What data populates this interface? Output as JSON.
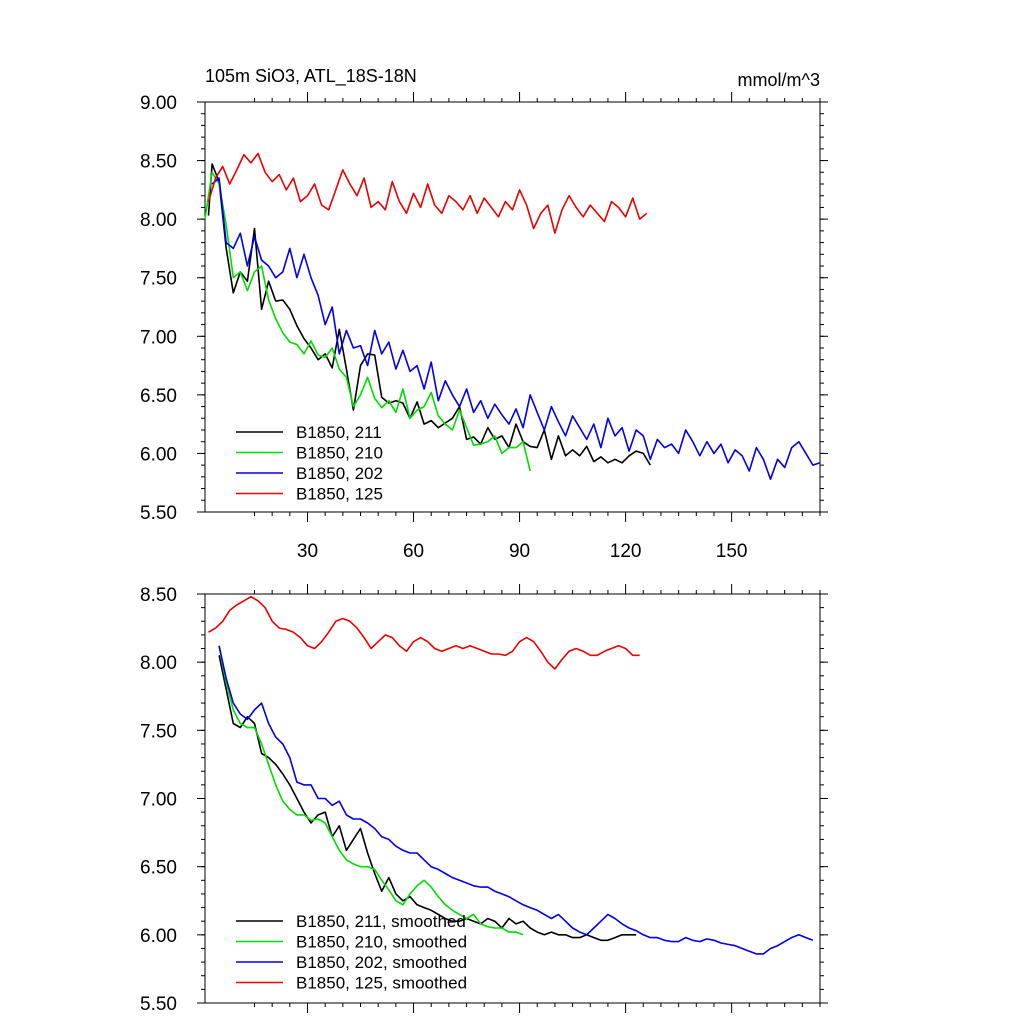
{
  "chart_data": [
    {
      "type": "line",
      "title_left": "105m SiO3, ATL_18S-18N",
      "title_right": "mmol/m^3",
      "xlim": [
        1,
        175
      ],
      "ylim": [
        5.5,
        9.0
      ],
      "xticks": [
        30,
        60,
        90,
        120,
        150
      ],
      "xtick_labels": [
        "30",
        "60",
        "90",
        "120",
        "150"
      ],
      "yticks": [
        5.5,
        6.0,
        6.5,
        7.0,
        7.5,
        8.0,
        8.5,
        9.0
      ],
      "ytick_labels": [
        "5.50",
        "6.00",
        "6.50",
        "7.00",
        "7.50",
        "8.00",
        "8.50",
        "9.00"
      ],
      "legend_position": "bottom-left",
      "series": [
        {
          "name": "B1850, 211",
          "color": "#000000",
          "x": [
            2,
            3,
            5,
            7,
            9,
            11,
            13,
            15,
            17,
            19,
            21,
            23,
            25,
            27,
            29,
            31,
            33,
            35,
            37,
            39,
            41,
            43,
            45,
            47,
            49,
            51,
            53,
            55,
            57,
            59,
            61,
            63,
            65,
            67,
            69,
            71,
            73,
            75,
            77,
            79,
            81,
            83,
            85,
            87,
            89,
            91,
            93,
            95,
            97,
            99,
            101,
            103,
            105,
            107,
            109,
            111,
            113,
            115,
            117,
            119,
            121,
            123,
            125,
            127
          ],
          "y": [
            8.03,
            8.47,
            8.32,
            7.75,
            7.37,
            7.55,
            7.47,
            7.92,
            7.23,
            7.47,
            7.3,
            7.31,
            7.23,
            7.09,
            6.98,
            6.9,
            6.8,
            6.85,
            6.73,
            7.06,
            6.72,
            6.37,
            6.75,
            6.85,
            6.84,
            6.48,
            6.43,
            6.45,
            6.43,
            6.3,
            6.44,
            6.25,
            6.28,
            6.22,
            6.26,
            6.3,
            6.4,
            6.12,
            6.14,
            6.08,
            6.22,
            6.12,
            6.15,
            6.05,
            6.25,
            6.1,
            6.06,
            6.05,
            6.2,
            5.95,
            6.15,
            5.98,
            6.03,
            5.98,
            6.06,
            5.93,
            5.97,
            5.92,
            5.95,
            5.92,
            5.98,
            6.02,
            6.0,
            5.9
          ]
        },
        {
          "name": "B1850, 210",
          "color": "#00dd00",
          "x": [
            1,
            3,
            5,
            7,
            9,
            11,
            13,
            15,
            17,
            19,
            21,
            23,
            25,
            27,
            29,
            31,
            33,
            35,
            37,
            39,
            41,
            43,
            45,
            47,
            49,
            51,
            53,
            55,
            57,
            59,
            61,
            63,
            65,
            67,
            69,
            71,
            73,
            75,
            77,
            79,
            81,
            83,
            85,
            87,
            89,
            91,
            93
          ],
          "y": [
            8.0,
            8.4,
            8.3,
            7.95,
            7.5,
            7.55,
            7.39,
            7.55,
            7.6,
            7.31,
            7.15,
            7.03,
            6.95,
            6.93,
            6.85,
            6.96,
            6.84,
            6.82,
            6.9,
            6.72,
            6.65,
            6.4,
            6.5,
            6.65,
            6.47,
            6.39,
            6.45,
            6.35,
            6.55,
            6.3,
            6.37,
            6.4,
            6.52,
            6.32,
            6.25,
            6.2,
            6.37,
            6.22,
            6.07,
            6.08,
            6.1,
            6.15,
            6.0,
            6.05,
            6.05,
            6.1,
            5.85
          ]
        },
        {
          "name": "B1850, 202",
          "color": "#0000ee",
          "x": [
            3,
            5,
            7,
            9,
            11,
            13,
            15,
            17,
            19,
            21,
            23,
            25,
            27,
            29,
            31,
            33,
            35,
            37,
            39,
            41,
            43,
            45,
            47,
            49,
            51,
            53,
            55,
            57,
            59,
            61,
            63,
            65,
            67,
            69,
            71,
            73,
            75,
            77,
            79,
            81,
            83,
            85,
            87,
            89,
            91,
            93,
            95,
            97,
            99,
            101,
            103,
            105,
            107,
            109,
            111,
            113,
            115,
            117,
            119,
            121,
            123,
            125,
            127,
            129,
            131,
            133,
            135,
            137,
            139,
            141,
            143,
            145,
            147,
            149,
            151,
            153,
            155,
            157,
            159,
            161,
            163,
            165,
            167,
            169,
            171,
            173,
            175
          ],
          "y": [
            8.3,
            8.35,
            7.8,
            7.75,
            7.88,
            7.6,
            7.85,
            7.65,
            7.6,
            7.5,
            7.55,
            7.75,
            7.5,
            7.7,
            7.5,
            7.35,
            7.1,
            7.25,
            6.85,
            7.05,
            6.9,
            6.92,
            6.75,
            7.05,
            6.85,
            6.95,
            6.72,
            6.88,
            6.7,
            6.75,
            6.55,
            6.78,
            6.45,
            6.62,
            6.5,
            6.4,
            6.55,
            6.35,
            6.45,
            6.3,
            6.42,
            6.33,
            6.25,
            6.38,
            6.22,
            6.5,
            6.35,
            6.2,
            6.4,
            6.27,
            6.15,
            6.32,
            6.22,
            6.12,
            6.25,
            6.05,
            6.3,
            6.15,
            6.22,
            6.02,
            6.2,
            6.15,
            5.95,
            6.12,
            6.05,
            6.08,
            6.0,
            6.2,
            6.1,
            5.98,
            6.1,
            6.0,
            6.08,
            5.92,
            6.03,
            5.98,
            5.85,
            6.05,
            5.95,
            5.78,
            5.95,
            5.88,
            6.05,
            6.1,
            6.0,
            5.9,
            5.92
          ]
        },
        {
          "name": "B1850, 125",
          "color": "#ee0000",
          "x": [
            2,
            4,
            6,
            8,
            10,
            12,
            14,
            16,
            18,
            20,
            22,
            24,
            26,
            28,
            30,
            32,
            34,
            36,
            38,
            40,
            42,
            44,
            46,
            48,
            50,
            52,
            54,
            56,
            58,
            60,
            62,
            64,
            66,
            68,
            70,
            72,
            74,
            76,
            78,
            80,
            82,
            84,
            86,
            88,
            90,
            92,
            94,
            96,
            98,
            100,
            102,
            104,
            106,
            108,
            110,
            112,
            114,
            116,
            118,
            120,
            122,
            124,
            126
          ],
          "y": [
            8.15,
            8.35,
            8.45,
            8.3,
            8.42,
            8.55,
            8.48,
            8.56,
            8.4,
            8.32,
            8.38,
            8.25,
            8.35,
            8.15,
            8.2,
            8.3,
            8.12,
            8.08,
            8.25,
            8.42,
            8.3,
            8.2,
            8.35,
            8.1,
            8.15,
            8.08,
            8.32,
            8.15,
            8.05,
            8.22,
            8.1,
            8.3,
            8.12,
            8.05,
            8.2,
            8.15,
            8.08,
            8.2,
            8.05,
            8.18,
            8.1,
            8.02,
            8.15,
            8.08,
            8.25,
            8.12,
            7.92,
            8.05,
            8.12,
            7.88,
            8.08,
            8.2,
            8.1,
            8.02,
            8.12,
            8.05,
            7.98,
            8.15,
            8.1,
            8.02,
            8.18,
            8.0,
            8.05
          ]
        }
      ]
    },
    {
      "type": "line",
      "xlim": [
        1,
        175
      ],
      "ylim": [
        5.5,
        8.5
      ],
      "xticks": [
        30,
        60,
        90,
        120,
        150
      ],
      "yticks": [
        5.5,
        6.0,
        6.5,
        7.0,
        7.5,
        8.0,
        8.5
      ],
      "ytick_labels": [
        "5.50",
        "6.00",
        "6.50",
        "7.00",
        "7.50",
        "8.00",
        "8.50"
      ],
      "legend_position": "bottom-left",
      "series": [
        {
          "name": "B1850, 211, smoothed",
          "color": "#000000",
          "x": [
            5,
            7,
            9,
            11,
            13,
            15,
            17,
            19,
            21,
            23,
            25,
            27,
            29,
            31,
            33,
            35,
            37,
            39,
            41,
            43,
            45,
            47,
            49,
            51,
            53,
            55,
            57,
            59,
            61,
            63,
            65,
            67,
            69,
            71,
            73,
            75,
            77,
            79,
            81,
            83,
            85,
            87,
            89,
            91,
            93,
            95,
            97,
            99,
            101,
            103,
            105,
            107,
            109,
            111,
            113,
            115,
            117,
            119,
            121,
            123
          ],
          "y": [
            8.05,
            7.8,
            7.55,
            7.52,
            7.6,
            7.55,
            7.33,
            7.3,
            7.25,
            7.18,
            7.1,
            7.0,
            6.9,
            6.82,
            6.88,
            6.9,
            6.72,
            6.8,
            6.62,
            6.7,
            6.78,
            6.6,
            6.45,
            6.32,
            6.42,
            6.3,
            6.25,
            6.28,
            6.22,
            6.2,
            6.18,
            6.15,
            6.12,
            6.1,
            6.1,
            6.12,
            6.1,
            6.08,
            6.12,
            6.1,
            6.05,
            6.12,
            6.08,
            6.1,
            6.05,
            6.02,
            6.0,
            6.02,
            6.0,
            6.0,
            5.98,
            5.98,
            6.0,
            5.98,
            5.96,
            5.96,
            5.98,
            6.0,
            6.0,
            6.0
          ]
        },
        {
          "name": "B1850, 210, smoothed",
          "color": "#00dd00",
          "x": [
            5,
            7,
            9,
            11,
            13,
            15,
            17,
            19,
            21,
            23,
            25,
            27,
            29,
            31,
            33,
            35,
            37,
            39,
            41,
            43,
            45,
            47,
            49,
            51,
            53,
            55,
            57,
            59,
            61,
            63,
            65,
            67,
            69,
            71,
            73,
            75,
            77,
            79,
            81,
            83,
            85,
            87,
            89,
            91
          ],
          "y": [
            8.12,
            7.85,
            7.65,
            7.55,
            7.52,
            7.52,
            7.4,
            7.25,
            7.1,
            6.98,
            6.92,
            6.88,
            6.88,
            6.84,
            6.85,
            6.82,
            6.72,
            6.62,
            6.55,
            6.52,
            6.5,
            6.5,
            6.48,
            6.4,
            6.33,
            6.25,
            6.22,
            6.3,
            6.36,
            6.4,
            6.35,
            6.28,
            6.22,
            6.18,
            6.15,
            6.12,
            6.15,
            6.08,
            6.06,
            6.05,
            6.05,
            6.02,
            6.02,
            6.0
          ]
        },
        {
          "name": "B1850, 202, smoothed",
          "color": "#0000ee",
          "x": [
            5,
            7,
            9,
            11,
            13,
            15,
            17,
            19,
            21,
            23,
            25,
            27,
            29,
            31,
            33,
            35,
            37,
            39,
            41,
            43,
            45,
            47,
            49,
            51,
            53,
            55,
            57,
            59,
            61,
            63,
            65,
            67,
            69,
            71,
            73,
            75,
            77,
            79,
            81,
            83,
            85,
            87,
            89,
            91,
            93,
            95,
            97,
            99,
            101,
            103,
            105,
            107,
            109,
            111,
            113,
            115,
            117,
            119,
            121,
            123,
            125,
            127,
            129,
            131,
            133,
            135,
            137,
            139,
            141,
            143,
            145,
            147,
            149,
            151,
            153,
            155,
            157,
            159,
            161,
            163,
            165,
            167,
            169,
            171,
            173
          ],
          "y": [
            8.12,
            7.88,
            7.7,
            7.62,
            7.58,
            7.65,
            7.7,
            7.55,
            7.45,
            7.4,
            7.3,
            7.12,
            7.1,
            7.1,
            7.0,
            7.0,
            6.95,
            6.98,
            6.88,
            6.85,
            6.85,
            6.82,
            6.78,
            6.72,
            6.7,
            6.65,
            6.62,
            6.6,
            6.6,
            6.55,
            6.5,
            6.48,
            6.45,
            6.42,
            6.4,
            6.38,
            6.36,
            6.35,
            6.35,
            6.32,
            6.3,
            6.28,
            6.25,
            6.22,
            6.2,
            6.18,
            6.15,
            6.12,
            6.15,
            6.1,
            6.05,
            6.02,
            6.0,
            6.05,
            6.1,
            6.15,
            6.12,
            6.08,
            6.05,
            6.03,
            6.0,
            5.98,
            5.98,
            5.96,
            5.95,
            5.95,
            5.98,
            5.96,
            5.95,
            5.97,
            5.96,
            5.94,
            5.93,
            5.92,
            5.9,
            5.88,
            5.86,
            5.86,
            5.9,
            5.92,
            5.95,
            5.98,
            6.0,
            5.98,
            5.96
          ]
        },
        {
          "name": "B1850, 125, smoothed",
          "color": "#ee0000",
          "x": [
            2,
            4,
            6,
            8,
            10,
            12,
            14,
            16,
            18,
            20,
            22,
            24,
            26,
            28,
            30,
            32,
            34,
            36,
            38,
            40,
            42,
            44,
            46,
            48,
            50,
            52,
            54,
            56,
            58,
            60,
            62,
            64,
            66,
            68,
            70,
            72,
            74,
            76,
            78,
            80,
            82,
            84,
            86,
            88,
            90,
            92,
            94,
            96,
            98,
            100,
            102,
            104,
            106,
            108,
            110,
            112,
            114,
            116,
            118,
            120,
            122,
            124
          ],
          "y": [
            8.22,
            8.25,
            8.3,
            8.38,
            8.42,
            8.45,
            8.48,
            8.45,
            8.4,
            8.3,
            8.25,
            8.24,
            8.22,
            8.18,
            8.12,
            8.1,
            8.15,
            8.22,
            8.3,
            8.32,
            8.3,
            8.25,
            8.18,
            8.1,
            8.15,
            8.2,
            8.18,
            8.12,
            8.08,
            8.15,
            8.18,
            8.15,
            8.1,
            8.08,
            8.1,
            8.12,
            8.1,
            8.12,
            8.1,
            8.08,
            8.06,
            8.06,
            8.05,
            8.08,
            8.15,
            8.18,
            8.15,
            8.08,
            8.0,
            7.95,
            8.02,
            8.08,
            8.1,
            8.08,
            8.05,
            8.05,
            8.08,
            8.1,
            8.12,
            8.1,
            8.05,
            8.05
          ]
        }
      ]
    }
  ]
}
